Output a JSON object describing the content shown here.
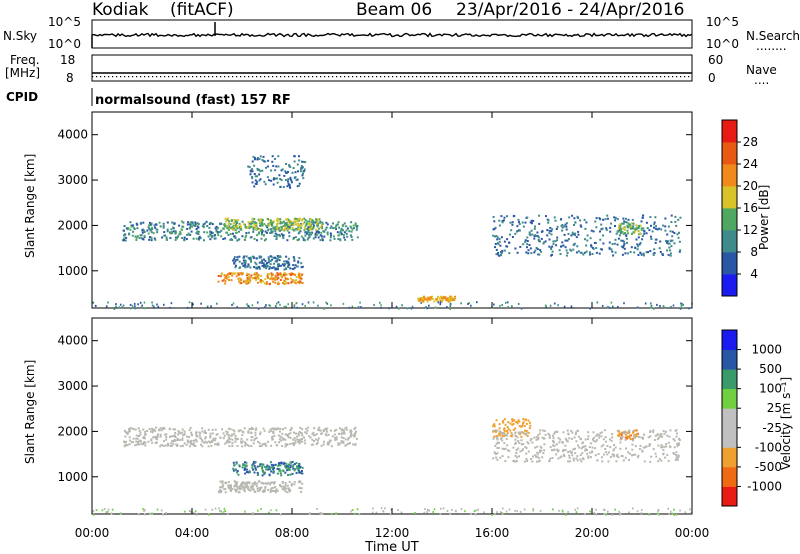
{
  "header": {
    "station": "Kodiak",
    "processing": "(fitACF)",
    "beam": "Beam 06",
    "date_range": "23/Apr/2016 - 24/Apr/2016"
  },
  "noise_panel": {
    "left_label": "N.Sky",
    "right_label": "N.Search",
    "right_marker": "........",
    "left_ticks": [
      "10^5",
      "10^0"
    ],
    "right_ticks": [
      "10^5",
      "10^0"
    ]
  },
  "freq_panel": {
    "left_label": "Freq.",
    "left_unit": "[MHz]",
    "left_ticks": [
      "18",
      "8"
    ],
    "right_label": "Nave",
    "right_marker": "....",
    "right_ticks": [
      "60",
      "0"
    ]
  },
  "cpid": {
    "label": "CPID",
    "text": "normalsound (fast) 157 RF"
  },
  "colors": {
    "power_scale": [
      "#1b1bf0",
      "#2a56a8",
      "#3f8a8a",
      "#4ea862",
      "#d8c428",
      "#f08a1a",
      "#e85a14",
      "#e81a14"
    ],
    "velocity_scale": [
      "#e81a14",
      "#f06a14",
      "#f0a030",
      "#c0c0c0",
      "#c0c0c0",
      "#70d040",
      "#3a9a6a",
      "#2a56a8",
      "#1b1bf0"
    ],
    "ground_scatter": "#b8b8b0"
  },
  "power_colorbar": {
    "label": "Power [dB]",
    "ticks": [
      "4",
      "8",
      "12",
      "16",
      "20",
      "24",
      "28"
    ]
  },
  "velocity_colorbar": {
    "label": "Velocity [m s⁻¹]",
    "ticks": [
      "-1000",
      "-500",
      "-100",
      "-25",
      "25",
      "100",
      "500",
      "1000"
    ]
  },
  "chart_data": [
    {
      "type": "heatmap",
      "title": "",
      "xlabel": "Time UT",
      "ylabel": "Slant Range [km]",
      "x_ticks": [
        "00:00",
        "04:00",
        "08:00",
        "12:00",
        "16:00",
        "20:00",
        "00:00"
      ],
      "y_ticks": [
        "1000",
        "2000",
        "3000",
        "4000"
      ],
      "xlim": [
        0,
        24
      ],
      "ylim": [
        180,
        4500
      ],
      "colorbar": "Power [dB]",
      "regions": [
        {
          "t0": 1.2,
          "t1": 10.6,
          "r_center": 1900,
          "r_width": 420,
          "value": 10
        },
        {
          "t0": 5.2,
          "t1": 9.2,
          "r_center": 2050,
          "r_width": 250,
          "value": 16
        },
        {
          "t0": 5.0,
          "t1": 8.4,
          "r_center": 850,
          "r_width": 250,
          "value": 22
        },
        {
          "t0": 5.6,
          "t1": 8.4,
          "r_center": 1200,
          "r_width": 300,
          "value": 8
        },
        {
          "t0": 6.2,
          "t1": 8.5,
          "r_center": 3200,
          "r_width": 700,
          "value": 8
        },
        {
          "t0": 16.0,
          "t1": 23.5,
          "r_center": 1800,
          "r_width": 900,
          "value": 8
        },
        {
          "t0": 21.0,
          "t1": 22.0,
          "r_center": 1950,
          "r_width": 250,
          "value": 14
        },
        {
          "t0": 13.0,
          "t1": 14.5,
          "r_center": 400,
          "r_width": 120,
          "value": 20
        }
      ]
    },
    {
      "type": "heatmap",
      "title": "",
      "xlabel": "Time UT",
      "ylabel": "Slant Range [km]",
      "x_ticks": [
        "00:00",
        "04:00",
        "08:00",
        "12:00",
        "16:00",
        "20:00",
        "00:00"
      ],
      "y_ticks": [
        "1000",
        "2000",
        "3000",
        "4000"
      ],
      "xlim": [
        0,
        24
      ],
      "ylim": [
        180,
        4500
      ],
      "colorbar": "Velocity [m s⁻¹]",
      "regions": [
        {
          "t0": 1.2,
          "t1": 10.6,
          "r_center": 1900,
          "r_width": 420,
          "value": 0
        },
        {
          "t0": 5.0,
          "t1": 8.4,
          "r_center": 800,
          "r_width": 250,
          "value": 0
        },
        {
          "t0": 5.6,
          "t1": 8.4,
          "r_center": 1200,
          "r_width": 300,
          "value": 100
        },
        {
          "t0": 16.0,
          "t1": 17.5,
          "r_center": 2100,
          "r_width": 400,
          "value": -300
        },
        {
          "t0": 21.0,
          "t1": 21.8,
          "r_center": 1950,
          "r_width": 200,
          "value": -500
        },
        {
          "t0": 16.0,
          "t1": 23.5,
          "r_center": 1700,
          "r_width": 700,
          "value": 0
        }
      ]
    }
  ]
}
